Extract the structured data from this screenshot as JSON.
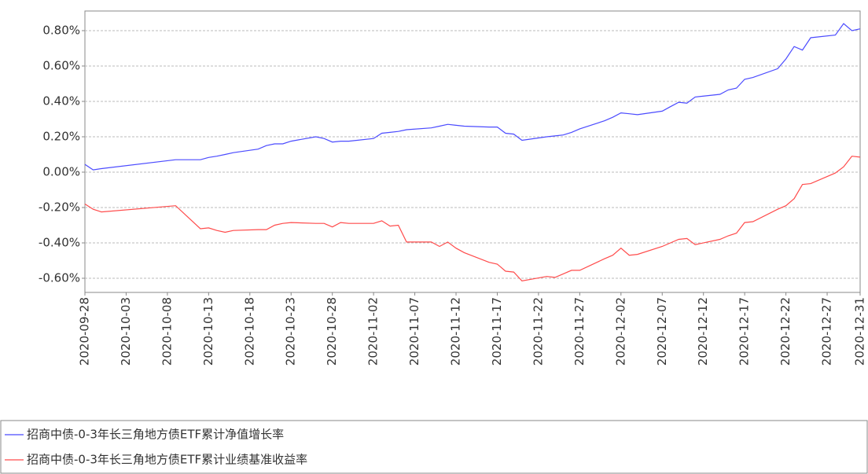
{
  "chart_data": {
    "type": "line",
    "x": [
      "2020-09-28",
      "2020-09-29",
      "2020-09-30",
      "2020-10-09",
      "2020-10-12",
      "2020-10-13",
      "2020-10-14",
      "2020-10-15",
      "2020-10-16",
      "2020-10-19",
      "2020-10-20",
      "2020-10-21",
      "2020-10-22",
      "2020-10-23",
      "2020-10-26",
      "2020-10-27",
      "2020-10-28",
      "2020-10-29",
      "2020-10-30",
      "2020-11-02",
      "2020-11-03",
      "2020-11-04",
      "2020-11-05",
      "2020-11-06",
      "2020-11-09",
      "2020-11-10",
      "2020-11-11",
      "2020-11-12",
      "2020-11-13",
      "2020-11-16",
      "2020-11-17",
      "2020-11-18",
      "2020-11-19",
      "2020-11-20",
      "2020-11-23",
      "2020-11-24",
      "2020-11-25",
      "2020-11-26",
      "2020-11-27",
      "2020-11-30",
      "2020-12-01",
      "2020-12-02",
      "2020-12-03",
      "2020-12-04",
      "2020-12-07",
      "2020-12-08",
      "2020-12-09",
      "2020-12-10",
      "2020-12-11",
      "2020-12-14",
      "2020-12-15",
      "2020-12-16",
      "2020-12-17",
      "2020-12-18",
      "2020-12-21",
      "2020-12-22",
      "2020-12-23",
      "2020-12-24",
      "2020-12-25",
      "2020-12-28",
      "2020-12-29",
      "2020-12-30",
      "2020-12-31"
    ],
    "series": [
      {
        "name": "招商中债-0-3年长三角地方债ETF累计净值增长率",
        "color": "#4b4bff",
        "values": [
          0.044,
          0.013,
          0.02,
          0.07,
          0.07,
          0.083,
          0.09,
          0.1,
          0.11,
          0.13,
          0.15,
          0.16,
          0.16,
          0.175,
          0.2,
          0.19,
          0.17,
          0.175,
          0.175,
          0.19,
          0.22,
          0.225,
          0.23,
          0.24,
          0.25,
          0.26,
          0.27,
          0.265,
          0.26,
          0.255,
          0.255,
          0.22,
          0.215,
          0.18,
          0.2,
          0.205,
          0.21,
          0.225,
          0.245,
          0.29,
          0.31,
          0.335,
          0.33,
          0.325,
          0.345,
          0.37,
          0.395,
          0.39,
          0.425,
          0.44,
          0.465,
          0.475,
          0.525,
          0.535,
          0.585,
          0.64,
          0.71,
          0.69,
          0.76,
          0.775,
          0.84,
          0.8,
          0.81
        ]
      },
      {
        "name": "招商中债-0-3年长三角地方债ETF累计业绩基准收益率",
        "color": "#ff4b4b",
        "values": [
          -0.18,
          -0.21,
          -0.225,
          -0.19,
          -0.32,
          -0.315,
          -0.33,
          -0.34,
          -0.33,
          -0.325,
          -0.325,
          -0.3,
          -0.29,
          -0.285,
          -0.29,
          -0.29,
          -0.31,
          -0.285,
          -0.29,
          -0.29,
          -0.275,
          -0.305,
          -0.3,
          -0.395,
          -0.395,
          -0.42,
          -0.395,
          -0.43,
          -0.455,
          -0.51,
          -0.52,
          -0.56,
          -0.565,
          -0.615,
          -0.59,
          -0.595,
          -0.575,
          -0.555,
          -0.555,
          -0.49,
          -0.47,
          -0.43,
          -0.47,
          -0.465,
          -0.42,
          -0.4,
          -0.38,
          -0.375,
          -0.41,
          -0.38,
          -0.36,
          -0.345,
          -0.285,
          -0.28,
          -0.21,
          -0.19,
          -0.15,
          -0.07,
          -0.065,
          -0.005,
          0.03,
          0.09,
          0.085
        ]
      }
    ],
    "xlim": [
      "2020-09-28",
      "2020-12-31"
    ],
    "xticks": [
      "2020-09-28",
      "2020-10-03",
      "2020-10-08",
      "2020-10-13",
      "2020-10-18",
      "2020-10-23",
      "2020-10-28",
      "2020-11-02",
      "2020-11-07",
      "2020-11-12",
      "2020-11-17",
      "2020-11-22",
      "2020-11-27",
      "2020-12-02",
      "2020-12-07",
      "2020-12-12",
      "2020-12-17",
      "2020-12-22",
      "2020-12-27",
      "2020-12-31"
    ],
    "ylim": [
      -0.68,
      0.911
    ],
    "yticks": [
      {
        "value": -0.6,
        "label": "-0.60%"
      },
      {
        "value": -0.4,
        "label": "-0.40%"
      },
      {
        "value": -0.2,
        "label": "-0.20%"
      },
      {
        "value": 0,
        "label": "0.00%"
      },
      {
        "value": 0.2,
        "label": "0.20%"
      },
      {
        "value": 0.4,
        "label": "0.40%"
      },
      {
        "value": 0.6,
        "label": "0.60%"
      },
      {
        "value": 0.8,
        "label": "0.80%"
      }
    ],
    "grid": true
  }
}
